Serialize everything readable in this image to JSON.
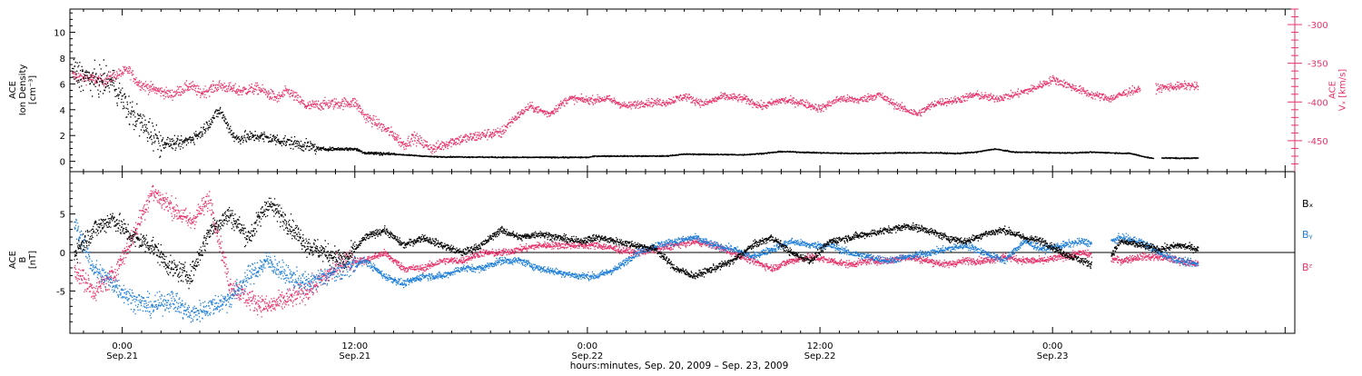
{
  "chart_data": [
    {
      "type": "scatter",
      "panel": "top",
      "left_axis": {
        "label_lines": [
          "ACE",
          "Ion Density",
          "[cm⁻³]"
        ],
        "range": [
          -0.8,
          11.8
        ],
        "ticks": [
          0,
          2,
          4,
          6,
          8,
          10
        ]
      },
      "right_axis": {
        "label_lines": [
          "ACE",
          "Vₓ [km/s]"
        ],
        "range": [
          -490,
          -280
        ],
        "ticks": [
          -300,
          -350,
          -400,
          -450
        ],
        "color": "#e8336a"
      },
      "series": [
        {
          "axis": "left",
          "color": "#000000",
          "knots_x": [
            -2.6,
            -1.5,
            -0.5,
            0.3,
            0.8,
            2,
            3,
            4,
            5,
            5.8,
            7,
            9,
            10.2,
            12,
            12.5,
            14,
            16,
            20,
            24,
            24.4,
            28,
            29,
            32,
            33,
            34,
            36,
            38,
            40,
            42,
            43,
            44,
            45,
            46,
            47,
            48,
            49,
            50,
            51,
            52,
            53,
            54,
            54.8,
            55.5
          ],
          "knots_y": [
            7,
            6.3,
            6.2,
            4,
            3.2,
            1.5,
            1.4,
            2.2,
            4,
            1.8,
            2,
            1.4,
            1,
            1,
            0.7,
            0.6,
            0.4,
            0.35,
            0.35,
            0.45,
            0.45,
            0.6,
            0.55,
            0.65,
            0.8,
            0.7,
            0.65,
            0.7,
            0.7,
            0.65,
            0.75,
            1,
            0.75,
            0.75,
            0.7,
            0.7,
            0.75,
            0.7,
            0.65,
            0.3,
            0.3,
            0.28,
            0.3
          ],
          "gaps": [
            [
              53.2,
              53.6
            ]
          ]
        },
        {
          "axis": "right",
          "color": "#e8336a",
          "knots_x": [
            -2.6,
            -1,
            0.3,
            0.8,
            1.5,
            2.5,
            3.5,
            4,
            5,
            6,
            7,
            8,
            8.5,
            9.5,
            10.5,
            12,
            12.5,
            13,
            14,
            14.5,
            15,
            16,
            17,
            18,
            19,
            19.5,
            20,
            21,
            22,
            23,
            24,
            25,
            26,
            27,
            28,
            29,
            30,
            31,
            32,
            33,
            34,
            35,
            36,
            37,
            38,
            39,
            40,
            41,
            42,
            43,
            44,
            45,
            46,
            47,
            48,
            49,
            50,
            51,
            52,
            53,
            54,
            55,
            55.5
          ],
          "knots_y": [
            -365,
            -372,
            -358,
            -375,
            -382,
            -390,
            -378,
            -388,
            -378,
            -385,
            -382,
            -395,
            -385,
            -405,
            -402,
            -400,
            -418,
            -425,
            -442,
            -455,
            -445,
            -460,
            -450,
            -445,
            -440,
            -440,
            -425,
            -405,
            -415,
            -395,
            -397,
            -395,
            -405,
            -400,
            -400,
            -392,
            -402,
            -392,
            -395,
            -405,
            -397,
            -400,
            -408,
            -395,
            -397,
            -390,
            -405,
            -415,
            -400,
            -397,
            -390,
            -395,
            -390,
            -382,
            -370,
            -380,
            -390,
            -395,
            -385,
            -382,
            -380,
            -378,
            -380
          ],
          "gaps": [
            [
              52.5,
              53.3
            ]
          ]
        }
      ]
    },
    {
      "type": "scatter",
      "panel": "bottom",
      "left_axis": {
        "label_lines": [
          "ACE",
          "B",
          "[nT]"
        ],
        "range": [
          -10.5,
          10.5
        ],
        "ticks": [
          -5,
          0,
          5
        ]
      },
      "reference_line": 0,
      "series": [
        {
          "name": "Bₓ",
          "color": "#000000",
          "knots_x": [
            -2.5,
            -1.5,
            -0.5,
            0.5,
            1.5,
            2.5,
            3.5,
            4.5,
            5.5,
            6.5,
            7.5,
            8.5,
            9.5,
            10.5,
            11.5,
            12.5,
            13.5,
            14.5,
            15.5,
            16.5,
            17.5,
            18.5,
            19.5,
            20.5,
            21.5,
            22.5,
            23.5,
            24.5,
            25.5,
            26.5,
            27.5,
            28.5,
            29.5,
            30.5,
            31.5,
            32.5,
            33.5,
            34.5,
            35.5,
            36.5,
            37.5,
            38.5,
            39.5,
            40.5,
            41.5,
            42.5,
            43.5,
            44.5,
            45.5,
            46.5,
            47.5,
            48.5,
            49.5,
            50.5,
            51.5,
            52.5,
            53.5,
            54.5,
            55.5
          ],
          "knots_y": [
            0,
            3,
            4.5,
            2,
            1,
            -2,
            -3,
            3,
            5,
            2,
            6.5,
            4,
            1,
            0,
            -1,
            2,
            3,
            1,
            2,
            1,
            0,
            1,
            3,
            2,
            2.5,
            2,
            1.5,
            2,
            1.5,
            1,
            0.5,
            -2,
            -3,
            -2,
            -1,
            1,
            2,
            0,
            -1,
            1.5,
            2,
            2.5,
            3,
            3.5,
            3,
            2,
            1.5,
            2.5,
            3,
            2,
            1.5,
            0,
            -1,
            -2,
            1.5,
            1,
            0.5,
            1,
            0.5
          ],
          "gaps": [
            [
              50,
              51
            ]
          ]
        },
        {
          "name": "Bᵧ",
          "color": "#1f7fd8",
          "knots_x": [
            -2.5,
            -1.5,
            -0.5,
            0.5,
            1.5,
            2.5,
            3.5,
            4.5,
            5.5,
            6.5,
            7.5,
            8.5,
            9.5,
            10.5,
            11.5,
            12.5,
            13.5,
            14.5,
            15.5,
            16.5,
            17.5,
            18.5,
            19.5,
            20.5,
            21.5,
            22.5,
            23.5,
            24.5,
            25.5,
            26.5,
            27.5,
            28.5,
            29.5,
            30.5,
            31.5,
            32.5,
            33.5,
            34.5,
            35.5,
            36.5,
            37.5,
            38.5,
            39.5,
            40.5,
            41.5,
            42.5,
            43.5,
            44.5,
            45.5,
            46.5,
            47.5,
            48.5,
            49.5,
            50.5,
            51.5,
            52.5,
            53.5,
            54.5,
            55.5
          ],
          "knots_y": [
            4,
            -2,
            -4,
            -6,
            -7,
            -6,
            -8,
            -7,
            -6,
            -3,
            -1,
            -3,
            -4,
            -3,
            -2,
            -1,
            -3,
            -4,
            -3,
            -3,
            -2,
            -2,
            -1,
            -1,
            -2,
            -2.5,
            -3,
            -3,
            -2,
            0,
            1,
            1.5,
            2,
            1,
            0.5,
            -0.5,
            0.5,
            1.5,
            1,
            1,
            0,
            -0.5,
            -1,
            -0.5,
            0,
            0.5,
            1,
            0,
            -1,
            1.5,
            0.5,
            1,
            1.5,
            1,
            2,
            1.5,
            0,
            -1,
            -1.5
          ],
          "gaps": [
            [
              50,
              51
            ]
          ]
        },
        {
          "name": "Bᶻ",
          "color": "#e8336a",
          "knots_x": [
            -2.5,
            -1.5,
            -0.5,
            0.5,
            1.5,
            2.5,
            3.5,
            4.5,
            5.5,
            6.5,
            7.5,
            8.5,
            9.5,
            10.5,
            11.5,
            12.5,
            13.5,
            14.5,
            15.5,
            16.5,
            17.5,
            18.5,
            19.5,
            20.5,
            21.5,
            22.5,
            23.5,
            24.5,
            25.5,
            26.5,
            27.5,
            28.5,
            29.5,
            30.5,
            31.5,
            32.5,
            33.5,
            34.5,
            35.5,
            36.5,
            37.5,
            38.5,
            39.5,
            40.5,
            41.5,
            42.5,
            43.5,
            44.5,
            45.5,
            46.5,
            47.5,
            48.5,
            49.5,
            50.5,
            51.5,
            52.5,
            53.5,
            54.5,
            55.5
          ],
          "knots_y": [
            -2,
            -5,
            -3,
            2,
            8,
            6,
            4,
            7,
            -4,
            -6,
            -7,
            -6,
            -5,
            -3,
            -1,
            -1,
            0,
            -2,
            -2,
            -1,
            -1,
            0,
            0,
            0.5,
            1,
            1,
            1,
            1,
            0.5,
            0,
            0.5,
            1,
            1.5,
            1,
            0,
            -1,
            -2,
            -1,
            -0.5,
            -1,
            -1.5,
            -1,
            -1,
            -0.5,
            -1,
            -1.5,
            -1,
            -1,
            -0.5,
            -1,
            -1,
            -0.5,
            0,
            -0.5,
            -1,
            -0.5,
            -0.5,
            -1,
            -1.5
          ],
          "gaps": [
            [
              50,
              51
            ]
          ]
        }
      ],
      "legend": {
        "placement": "right",
        "entries": [
          "Bₓ",
          "Bᵧ",
          "Bᶻ"
        ]
      }
    }
  ],
  "x_axis": {
    "range_hours": [
      -2.7,
      60.5
    ],
    "major_ticks": [
      {
        "hour": 0,
        "time": "0:00",
        "date": "Sep.21"
      },
      {
        "hour": 12,
        "time": "12:00",
        "date": "Sep.21"
      },
      {
        "hour": 24,
        "time": "0:00",
        "date": "Sep.22"
      },
      {
        "hour": 36,
        "time": "12:00",
        "date": "Sep.22"
      },
      {
        "hour": 48,
        "time": "0:00",
        "date": "Sep.23"
      }
    ],
    "minor_tick_step_hours": 1,
    "caption": "hours:minutes, Sep. 20, 2009 – Sep. 23, 2009"
  }
}
